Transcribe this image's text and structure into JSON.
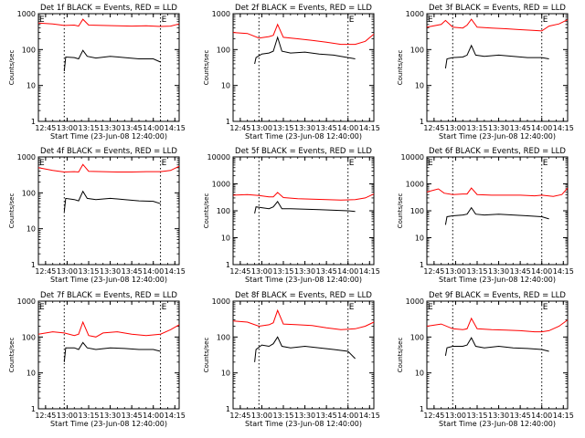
{
  "figure": {
    "ylabel": "Counts/sec",
    "xlabel": "Start Time (23-Jun-08 12:40:00)",
    "marker": "E"
  },
  "chart_data": [
    {
      "type": "line",
      "title": "Det 1f BLACK = Events, RED = LLD",
      "xlabel": "Start Time (23-Jun-08 12:40:00)",
      "ylabel": "Counts/sec",
      "yscale": "log",
      "xlim": [
        "12:40",
        "14:18"
      ],
      "ylim": [
        1,
        1000
      ],
      "xticks": [
        "12:45",
        "13:00",
        "13:15",
        "13:30",
        "13:45",
        "14:00",
        "14:15"
      ],
      "yticks": [
        "1",
        "10",
        "100",
        "1000"
      ],
      "vlines": [
        "12:58",
        "14:05"
      ],
      "markers": [
        {
          "label": "E",
          "x": "12:40"
        },
        {
          "label": "E",
          "x": "14:05"
        }
      ],
      "series": [
        {
          "color": "#ff0000",
          "x": [
            "12:40",
            "12:50",
            "12:58",
            "13:05",
            "13:08",
            "13:11",
            "13:15",
            "13:25",
            "13:35",
            "13:45",
            "13:55",
            "14:05",
            "14:12",
            "14:18"
          ],
          "values": [
            550,
            520,
            470,
            480,
            450,
            700,
            480,
            470,
            460,
            450,
            460,
            440,
            450,
            520
          ]
        },
        {
          "color": "#000000",
          "x": [
            "12:58",
            "12:59",
            "13:05",
            "13:08",
            "13:11",
            "13:14",
            "13:20",
            "13:30",
            "13:40",
            "13:50",
            "14:00",
            "14:05"
          ],
          "values": [
            25,
            62,
            60,
            55,
            95,
            65,
            58,
            65,
            60,
            55,
            55,
            45
          ]
        }
      ]
    },
    {
      "type": "line",
      "title": "Det 2f BLACK = Events, RED = LLD",
      "xlabel": "Start Time (23-Jun-08 12:40:00)",
      "ylabel": "Counts/sec",
      "yscale": "log",
      "xlim": [
        "12:40",
        "14:18"
      ],
      "ylim": [
        1,
        1000
      ],
      "xticks": [
        "12:45",
        "13:00",
        "13:15",
        "13:30",
        "13:45",
        "14:00",
        "14:15"
      ],
      "yticks": [
        "1",
        "10",
        "100",
        "1000"
      ],
      "vlines": [
        "12:58",
        "14:00"
      ],
      "markers": [
        {
          "label": "E",
          "x": "14:00"
        }
      ],
      "series": [
        {
          "color": "#ff0000",
          "x": [
            "12:40",
            "12:50",
            "12:58",
            "13:05",
            "13:08",
            "13:11",
            "13:15",
            "13:25",
            "13:35",
            "13:45",
            "13:55",
            "14:05",
            "14:12",
            "14:18"
          ],
          "values": [
            300,
            280,
            210,
            230,
            250,
            500,
            220,
            200,
            180,
            160,
            140,
            140,
            170,
            270
          ]
        },
        {
          "color": "#000000",
          "x": [
            "12:55",
            "12:56",
            "13:00",
            "13:05",
            "13:08",
            "13:11",
            "13:14",
            "13:20",
            "13:30",
            "13:40",
            "13:50",
            "14:00",
            "14:05"
          ],
          "values": [
            40,
            60,
            75,
            80,
            90,
            220,
            90,
            80,
            85,
            75,
            70,
            60,
            55
          ]
        }
      ]
    },
    {
      "type": "line",
      "title": "Det 3f BLACK = Events, RED = LLD",
      "xlabel": "Start Time (23-Jun-08 12:40:00)",
      "ylabel": "Counts/sec",
      "yscale": "log",
      "xlim": [
        "12:40",
        "14:18"
      ],
      "ylim": [
        1,
        1000
      ],
      "xticks": [
        "12:45",
        "13:00",
        "13:15",
        "13:30",
        "13:45",
        "14:00",
        "14:15"
      ],
      "yticks": [
        "1",
        "10",
        "100",
        "1000"
      ],
      "vlines": [
        "12:58",
        "14:00"
      ],
      "markers": [
        {
          "label": "E",
          "x": "12:40"
        },
        {
          "label": "E",
          "x": "14:00"
        }
      ],
      "series": [
        {
          "color": "#ff0000",
          "x": [
            "12:40",
            "12:50",
            "12:53",
            "12:58",
            "13:05",
            "13:08",
            "13:11",
            "13:15",
            "13:25",
            "13:35",
            "13:45",
            "13:55",
            "14:00",
            "14:05",
            "14:12",
            "14:18"
          ],
          "values": [
            420,
            500,
            650,
            420,
            400,
            480,
            700,
            420,
            400,
            380,
            360,
            340,
            330,
            450,
            520,
            680
          ]
        },
        {
          "color": "#000000",
          "x": [
            "12:53",
            "12:54",
            "12:58",
            "13:05",
            "13:08",
            "13:11",
            "13:14",
            "13:20",
            "13:30",
            "13:40",
            "13:50",
            "14:00",
            "14:05"
          ],
          "values": [
            30,
            55,
            60,
            62,
            70,
            130,
            70,
            65,
            70,
            65,
            60,
            60,
            55
          ]
        }
      ]
    },
    {
      "type": "line",
      "title": "Det 4f BLACK = Events, RED = LLD",
      "xlabel": "Start Time (23-Jun-08 12:40:00)",
      "ylabel": "Counts/sec",
      "yscale": "log",
      "xlim": [
        "12:40",
        "14:18"
      ],
      "ylim": [
        1,
        1000
      ],
      "xticks": [
        "12:45",
        "13:00",
        "13:15",
        "13:30",
        "13:45",
        "14:00",
        "14:15"
      ],
      "yticks": [
        "1",
        "10",
        "100",
        "1000"
      ],
      "vlines": [
        "12:58",
        "14:05"
      ],
      "markers": [
        {
          "label": "E",
          "x": "12:40"
        },
        {
          "label": "E",
          "x": "14:05"
        }
      ],
      "series": [
        {
          "color": "#ff0000",
          "x": [
            "12:40",
            "12:50",
            "12:58",
            "13:05",
            "13:08",
            "13:11",
            "13:15",
            "13:25",
            "13:35",
            "13:45",
            "13:55",
            "14:05",
            "14:12",
            "14:18"
          ],
          "values": [
            500,
            420,
            380,
            390,
            380,
            620,
            400,
            390,
            380,
            380,
            390,
            390,
            420,
            550
          ]
        },
        {
          "color": "#000000",
          "x": [
            "12:58",
            "12:59",
            "13:05",
            "13:08",
            "13:11",
            "13:14",
            "13:20",
            "13:30",
            "13:40",
            "13:50",
            "14:00",
            "14:05"
          ],
          "values": [
            30,
            70,
            65,
            60,
            110,
            70,
            65,
            70,
            65,
            60,
            58,
            50
          ]
        }
      ]
    },
    {
      "type": "line",
      "title": "Det 5f BLACK = Events, RED = LLD",
      "xlabel": "Start Time (23-Jun-08 12:40:00)",
      "ylabel": "Counts/sec",
      "yscale": "log",
      "xlim": [
        "12:40",
        "14:18"
      ],
      "ylim": [
        1,
        10000
      ],
      "xticks": [
        "12:45",
        "13:00",
        "13:15",
        "13:30",
        "13:45",
        "14:00",
        "14:15"
      ],
      "yticks": [
        "1",
        "10",
        "100",
        "1000",
        "10000"
      ],
      "vlines": [
        "12:58",
        "14:00"
      ],
      "markers": [
        {
          "label": "E",
          "x": "14:00"
        }
      ],
      "series": [
        {
          "color": "#ff0000",
          "x": [
            "12:40",
            "12:50",
            "12:58",
            "13:05",
            "13:08",
            "13:11",
            "13:15",
            "13:25",
            "13:35",
            "13:45",
            "13:55",
            "14:05",
            "14:12",
            "14:18"
          ],
          "values": [
            380,
            400,
            370,
            330,
            330,
            480,
            310,
            280,
            270,
            260,
            250,
            260,
            300,
            420
          ]
        },
        {
          "color": "#000000",
          "x": [
            "12:55",
            "12:56",
            "13:00",
            "13:05",
            "13:08",
            "13:11",
            "13:14",
            "13:20",
            "13:30",
            "13:40",
            "13:50",
            "14:00",
            "14:05"
          ],
          "values": [
            80,
            140,
            130,
            120,
            140,
            220,
            120,
            120,
            115,
            110,
            105,
            100,
            95
          ]
        }
      ]
    },
    {
      "type": "line",
      "title": "Det 6f BLACK = Events, RED = LLD",
      "xlabel": "Start Time (23-Jun-08 12:40:00)",
      "ylabel": "Counts/sec",
      "yscale": "log",
      "xlim": [
        "12:40",
        "14:18"
      ],
      "ylim": [
        1,
        10000
      ],
      "xticks": [
        "12:45",
        "13:00",
        "13:15",
        "13:30",
        "13:45",
        "14:00",
        "14:15"
      ],
      "yticks": [
        "1",
        "10",
        "100",
        "1000",
        "10000"
      ],
      "vlines": [
        "12:58",
        "14:00"
      ],
      "markers": [
        {
          "label": "E",
          "x": "12:40"
        },
        {
          "label": "E",
          "x": "14:00"
        }
      ],
      "series": [
        {
          "color": "#ff0000",
          "x": [
            "12:40",
            "12:48",
            "12:52",
            "12:58",
            "13:05",
            "13:08",
            "13:11",
            "13:15",
            "13:25",
            "13:35",
            "13:45",
            "13:55",
            "14:00",
            "14:08",
            "14:14",
            "14:18"
          ],
          "values": [
            500,
            650,
            450,
            400,
            420,
            420,
            700,
            400,
            380,
            380,
            380,
            360,
            380,
            340,
            400,
            700
          ]
        },
        {
          "color": "#000000",
          "x": [
            "12:53",
            "12:54",
            "12:58",
            "13:05",
            "13:08",
            "13:11",
            "13:14",
            "13:20",
            "13:30",
            "13:40",
            "13:50",
            "14:00",
            "14:05"
          ],
          "values": [
            30,
            60,
            65,
            70,
            75,
            130,
            75,
            70,
            75,
            70,
            65,
            60,
            50
          ]
        }
      ]
    },
    {
      "type": "line",
      "title": "Det 7f BLACK = Events, RED = LLD",
      "xlabel": "Start Time (23-Jun-08 12:40:00)",
      "ylabel": "Counts/sec",
      "yscale": "log",
      "xlim": [
        "12:40",
        "14:18"
      ],
      "ylim": [
        1,
        1000
      ],
      "xticks": [
        "12:45",
        "13:00",
        "13:15",
        "13:30",
        "13:45",
        "14:00",
        "14:15"
      ],
      "yticks": [
        "1",
        "10",
        "100",
        "1000"
      ],
      "vlines": [
        "12:58",
        "14:05"
      ],
      "markers": [
        {
          "label": "E",
          "x": "12:40"
        },
        {
          "label": "E",
          "x": "14:05"
        }
      ],
      "series": [
        {
          "color": "#ff0000",
          "x": [
            "12:40",
            "12:50",
            "12:58",
            "13:05",
            "13:08",
            "13:11",
            "13:15",
            "13:20",
            "13:25",
            "13:35",
            "13:45",
            "13:55",
            "14:05",
            "14:12",
            "14:18"
          ],
          "values": [
            120,
            140,
            130,
            110,
            120,
            260,
            110,
            100,
            130,
            140,
            120,
            110,
            120,
            160,
            220
          ]
        },
        {
          "color": "#000000",
          "x": [
            "12:58",
            "12:59",
            "13:05",
            "13:08",
            "13:11",
            "13:14",
            "13:20",
            "13:30",
            "13:40",
            "13:50",
            "14:00",
            "14:05"
          ],
          "values": [
            20,
            50,
            50,
            45,
            70,
            50,
            45,
            50,
            48,
            45,
            45,
            40
          ]
        }
      ]
    },
    {
      "type": "line",
      "title": "Det 8f BLACK = Events, RED = LLD",
      "xlabel": "Start Time (23-Jun-08 12:40:00)",
      "ylabel": "Counts/sec",
      "yscale": "log",
      "xlim": [
        "12:40",
        "14:18"
      ],
      "ylim": [
        1,
        1000
      ],
      "xticks": [
        "12:45",
        "13:00",
        "13:15",
        "13:30",
        "13:45",
        "14:00",
        "14:15"
      ],
      "yticks": [
        "1",
        "10",
        "100",
        "1000"
      ],
      "vlines": [
        "12:58",
        "14:00"
      ],
      "markers": [
        {
          "label": "E",
          "x": "14:00"
        }
      ],
      "series": [
        {
          "color": "#ff0000",
          "x": [
            "12:40",
            "12:50",
            "12:58",
            "13:05",
            "13:08",
            "13:11",
            "13:15",
            "13:25",
            "13:35",
            "13:45",
            "13:55",
            "14:05",
            "14:12",
            "14:18"
          ],
          "values": [
            280,
            260,
            200,
            220,
            250,
            550,
            230,
            220,
            210,
            180,
            160,
            170,
            200,
            260
          ]
        },
        {
          "color": "#000000",
          "x": [
            "12:55",
            "12:56",
            "13:00",
            "13:05",
            "13:08",
            "13:11",
            "13:14",
            "13:20",
            "13:30",
            "13:40",
            "13:50",
            "14:00",
            "14:05"
          ],
          "values": [
            20,
            45,
            60,
            55,
            65,
            100,
            55,
            50,
            55,
            50,
            45,
            40,
            25
          ]
        }
      ]
    },
    {
      "type": "line",
      "title": "Det 9f BLACK = Events, RED = LLD",
      "xlabel": "Start Time (23-Jun-08 12:40:00)",
      "ylabel": "Counts/sec",
      "yscale": "log",
      "xlim": [
        "12:40",
        "14:18"
      ],
      "ylim": [
        1,
        1000
      ],
      "xticks": [
        "12:45",
        "13:00",
        "13:15",
        "13:30",
        "13:45",
        "14:00",
        "14:15"
      ],
      "yticks": [
        "1",
        "10",
        "100",
        "1000"
      ],
      "vlines": [
        "12:58",
        "14:00"
      ],
      "markers": [
        {
          "label": "E",
          "x": "12:40"
        },
        {
          "label": "E",
          "x": "14:00"
        }
      ],
      "series": [
        {
          "color": "#ff0000",
          "x": [
            "12:40",
            "12:50",
            "12:58",
            "13:05",
            "13:08",
            "13:11",
            "13:15",
            "13:25",
            "13:35",
            "13:45",
            "13:55",
            "14:00",
            "14:05",
            "14:12",
            "14:18"
          ],
          "values": [
            200,
            230,
            170,
            160,
            170,
            330,
            170,
            160,
            155,
            150,
            140,
            140,
            150,
            200,
            300
          ]
        },
        {
          "color": "#000000",
          "x": [
            "12:53",
            "12:54",
            "12:58",
            "13:05",
            "13:08",
            "13:11",
            "13:14",
            "13:20",
            "13:30",
            "13:40",
            "13:50",
            "14:00",
            "14:05"
          ],
          "values": [
            30,
            50,
            55,
            55,
            60,
            95,
            55,
            50,
            55,
            50,
            48,
            45,
            40
          ]
        }
      ]
    }
  ]
}
